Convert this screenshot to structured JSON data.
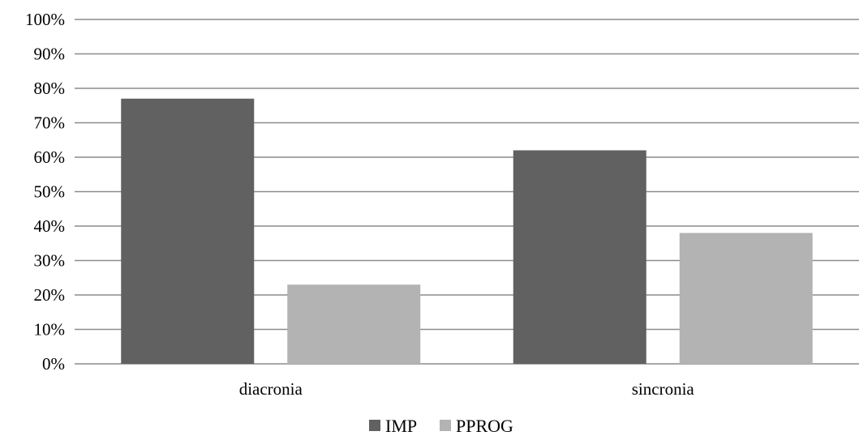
{
  "chart_data": {
    "type": "bar",
    "categories": [
      "diacronia",
      "sincronia"
    ],
    "series": [
      {
        "name": "IMP",
        "values": [
          77,
          62
        ],
        "color": "#616161"
      },
      {
        "name": "PPROG",
        "values": [
          23,
          38
        ],
        "color": "#b3b3b3"
      }
    ],
    "title": "",
    "xlabel": "",
    "ylabel": "",
    "ylim": [
      0,
      100
    ],
    "yticks": [
      "0%",
      "10%",
      "20%",
      "30%",
      "40%",
      "50%",
      "60%",
      "70%",
      "80%",
      "90%",
      "100%"
    ],
    "grid": true,
    "gridline_color": "#8c8c8c",
    "legend_position": "bottom"
  }
}
